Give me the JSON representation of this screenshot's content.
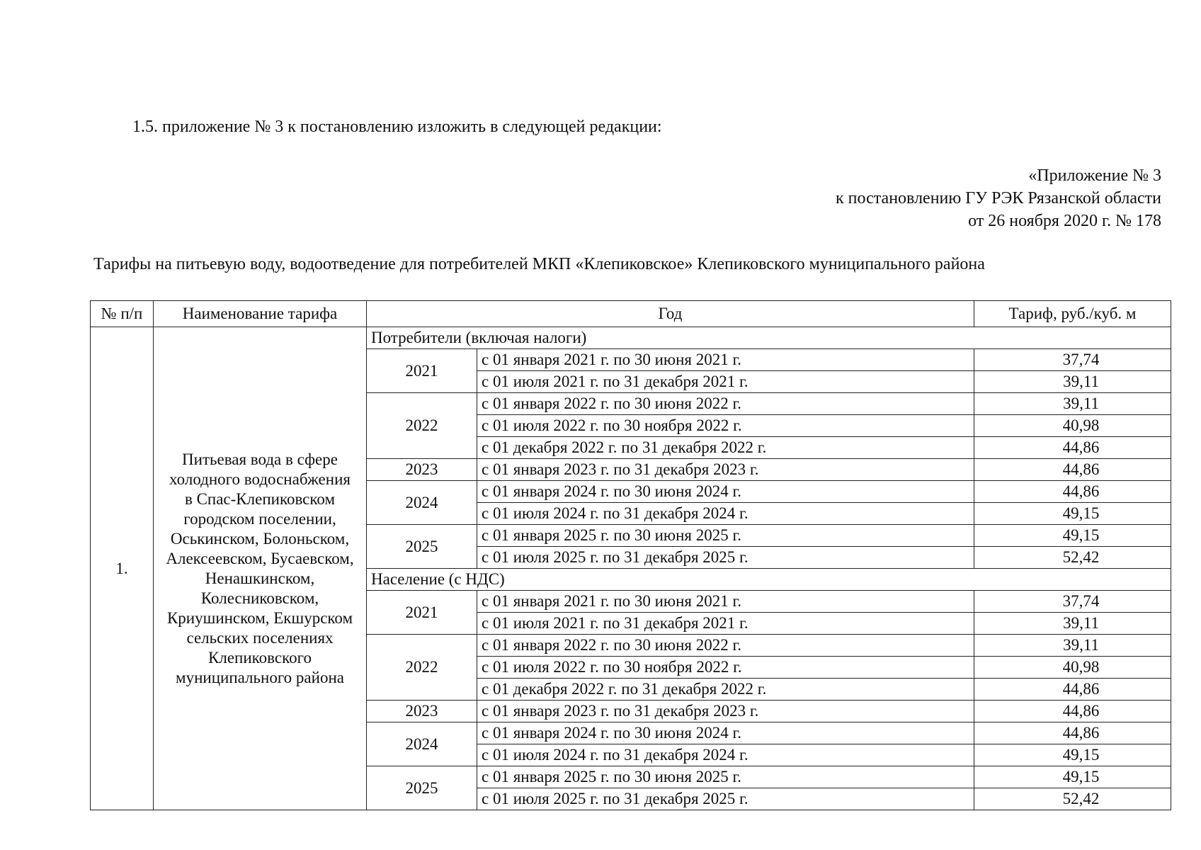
{
  "intro": "1.5. приложение № 3 к постановлению изложить в следующей редакции:",
  "approval": {
    "line1": "«Приложение № 3",
    "line2": "к постановлению ГУ РЭК Рязанской области",
    "line3": "от 26 ноября 2020 г. № 178"
  },
  "title": "Тарифы на питьевую воду, водоотведение для потребителей МКП «Клепиковское» Клепиковского муниципального района",
  "table": {
    "headers": [
      "№ п/п",
      "Наименование тарифа",
      "Год",
      "Тариф, руб./куб. м"
    ],
    "row_number": "1.",
    "tariff_name": [
      "Питьевая вода в сфере",
      "холодного водоснабжения",
      "в Спас-Клепиковском",
      "городском поселении,",
      "Оськинском, Болоньском,",
      "Алексеевском, Бусаевском,",
      "Ненашкинском,",
      "Колесниковском,",
      "Криушинском, Екшурском",
      "сельских поселениях",
      "Клепиковского",
      "муниципального района"
    ],
    "sections": [
      {
        "label": "Потребители (включая налоги)",
        "years": [
          {
            "year": "2021",
            "periods": [
              {
                "period": "с 01 января 2021 г. по 30 июня 2021 г.",
                "value": "37,74"
              },
              {
                "period": "с 01 июля 2021 г. по 31 декабря 2021 г.",
                "value": "39,11"
              }
            ]
          },
          {
            "year": "2022",
            "periods": [
              {
                "period": "с 01 января 2022 г. по 30 июня 2022 г.",
                "value": "39,11"
              },
              {
                "period": "с 01 июля 2022 г. по 30 ноября 2022 г.",
                "value": "40,98"
              },
              {
                "period": "с 01 декабря 2022 г. по 31 декабря 2022 г.",
                "value": "44,86"
              }
            ]
          },
          {
            "year": "2023",
            "periods": [
              {
                "period": "с 01 января 2023 г. по 31 декабря 2023 г.",
                "value": "44,86"
              }
            ]
          },
          {
            "year": "2024",
            "periods": [
              {
                "period": "с 01 января 2024 г. по 30 июня 2024 г.",
                "value": "44,86"
              },
              {
                "period": "с 01 июля 2024 г. по 31 декабря 2024 г.",
                "value": "49,15"
              }
            ]
          },
          {
            "year": "2025",
            "periods": [
              {
                "period": "с 01 января 2025 г. по 30 июня 2025 г.",
                "value": "49,15"
              },
              {
                "period": "с 01 июля 2025 г. по 31 декабря 2025 г.",
                "value": "52,42"
              }
            ]
          }
        ]
      },
      {
        "label": "Население (с НДС)",
        "years": [
          {
            "year": "2021",
            "periods": [
              {
                "period": "с 01 января 2021 г. по 30 июня 2021 г.",
                "value": "37,74"
              },
              {
                "period": "с 01 июля 2021 г. по 31 декабря 2021 г.",
                "value": "39,11"
              }
            ]
          },
          {
            "year": "2022",
            "periods": [
              {
                "period": "с 01 января 2022 г. по 30 июня 2022 г.",
                "value": "39,11"
              },
              {
                "period": "с 01 июля 2022 г. по 30 ноября 2022 г.",
                "value": "40,98"
              },
              {
                "period": "с 01 декабря 2022 г. по 31 декабря 2022 г.",
                "value": "44,86"
              }
            ]
          },
          {
            "year": "2023",
            "periods": [
              {
                "period": "с 01 января 2023 г. по 31 декабря 2023 г.",
                "value": "44,86"
              }
            ]
          },
          {
            "year": "2024",
            "periods": [
              {
                "period": "с 01 января 2024 г. по 30 июня 2024 г.",
                "value": "44,86"
              },
              {
                "period": "с 01 июля 2024 г. по 31 декабря 2024 г.",
                "value": "49,15"
              }
            ]
          },
          {
            "year": "2025",
            "periods": [
              {
                "period": "с 01 января 2025 г. по 30 июня 2025 г.",
                "value": "49,15"
              },
              {
                "period": "с 01 июля 2025 г. по 31 декабря 2025 г.",
                "value": "52,42"
              }
            ]
          }
        ]
      }
    ]
  }
}
